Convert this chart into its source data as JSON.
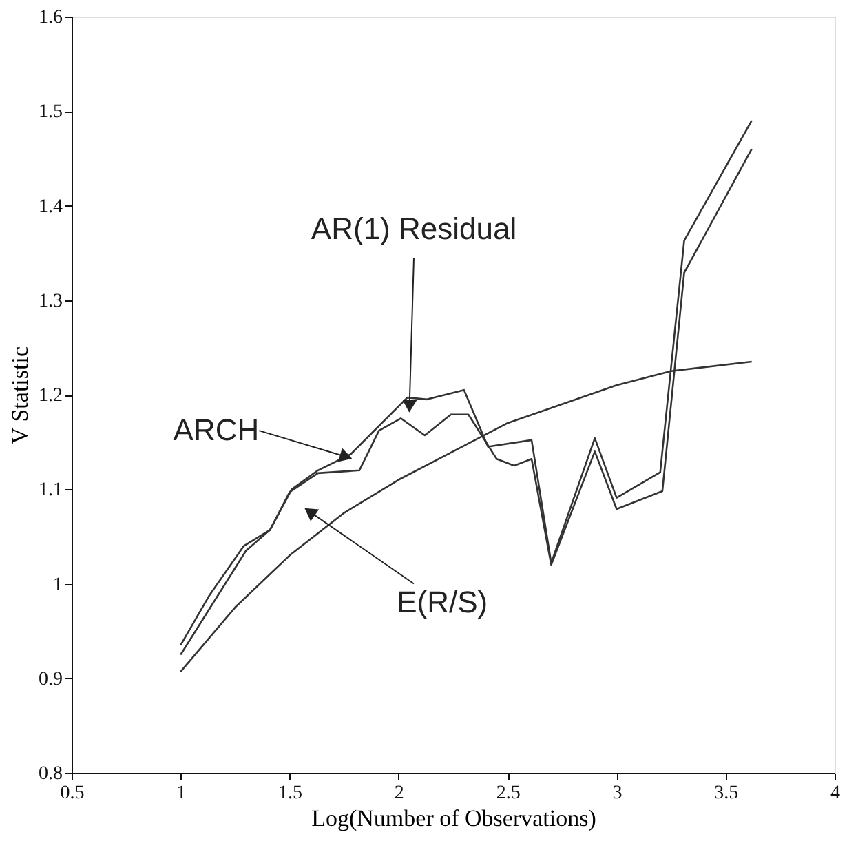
{
  "chart_data": {
    "type": "line",
    "xlabel": "Log(Number of Observations)",
    "ylabel": "V Statistic",
    "series": [
      {
        "color": "#333333",
        "x": [
          1.0,
          1.13,
          1.29,
          1.41,
          1.51,
          1.63,
          1.78,
          1.91,
          2.04,
          2.13,
          2.3,
          2.41,
          2.61,
          2.7,
          2.9,
          3.0,
          3.2,
          3.31,
          3.62
        ],
        "values": [
          0.935,
          0.987,
          1.04,
          1.057,
          1.1,
          1.12,
          1.137,
          1.167,
          1.197,
          1.195,
          1.205,
          1.145,
          1.152,
          1.022,
          1.154,
          1.091,
          1.118,
          1.363,
          1.49
        ]
      },
      {
        "color": "#333333",
        "x": [
          1.0,
          1.3,
          1.41,
          1.5,
          1.63,
          1.82,
          1.91,
          2.01,
          2.12,
          2.24,
          2.32,
          2.45,
          2.53,
          2.61,
          2.7,
          2.9,
          3.0,
          3.21,
          3.31,
          3.62
        ],
        "values": [
          0.925,
          1.035,
          1.057,
          1.097,
          1.117,
          1.12,
          1.162,
          1.175,
          1.157,
          1.179,
          1.179,
          1.132,
          1.125,
          1.132,
          1.02,
          1.14,
          1.079,
          1.098,
          1.329,
          1.46
        ]
      },
      {
        "color": "#333333",
        "x": [
          1.0,
          1.25,
          1.5,
          1.75,
          2.0,
          2.25,
          2.5,
          2.75,
          3.0,
          3.25,
          3.62
        ],
        "values": [
          0.907,
          0.975,
          1.03,
          1.075,
          1.11,
          1.14,
          1.17,
          1.19,
          1.21,
          1.225,
          1.235
        ]
      }
    ],
    "annotations": [
      {
        "text": "AR(1) Residual",
        "x": 2.05,
        "y": 1.19
      },
      {
        "text": "ARCH",
        "x": 1.75,
        "y": 1.135
      },
      {
        "text": "E(R/S)",
        "x": 1.6,
        "y": 1.075
      }
    ],
    "xlim": [
      0.5,
      4
    ],
    "xticks": [
      0.5,
      1,
      1.5,
      2,
      2.5,
      3,
      3.5,
      4
    ],
    "ylim": [
      0.8,
      1.6
    ],
    "yticks": [
      0.8,
      0.9,
      1,
      1.1,
      1.2,
      1.3,
      1.4,
      1.5,
      1.6
    ],
    "grid": false
  }
}
